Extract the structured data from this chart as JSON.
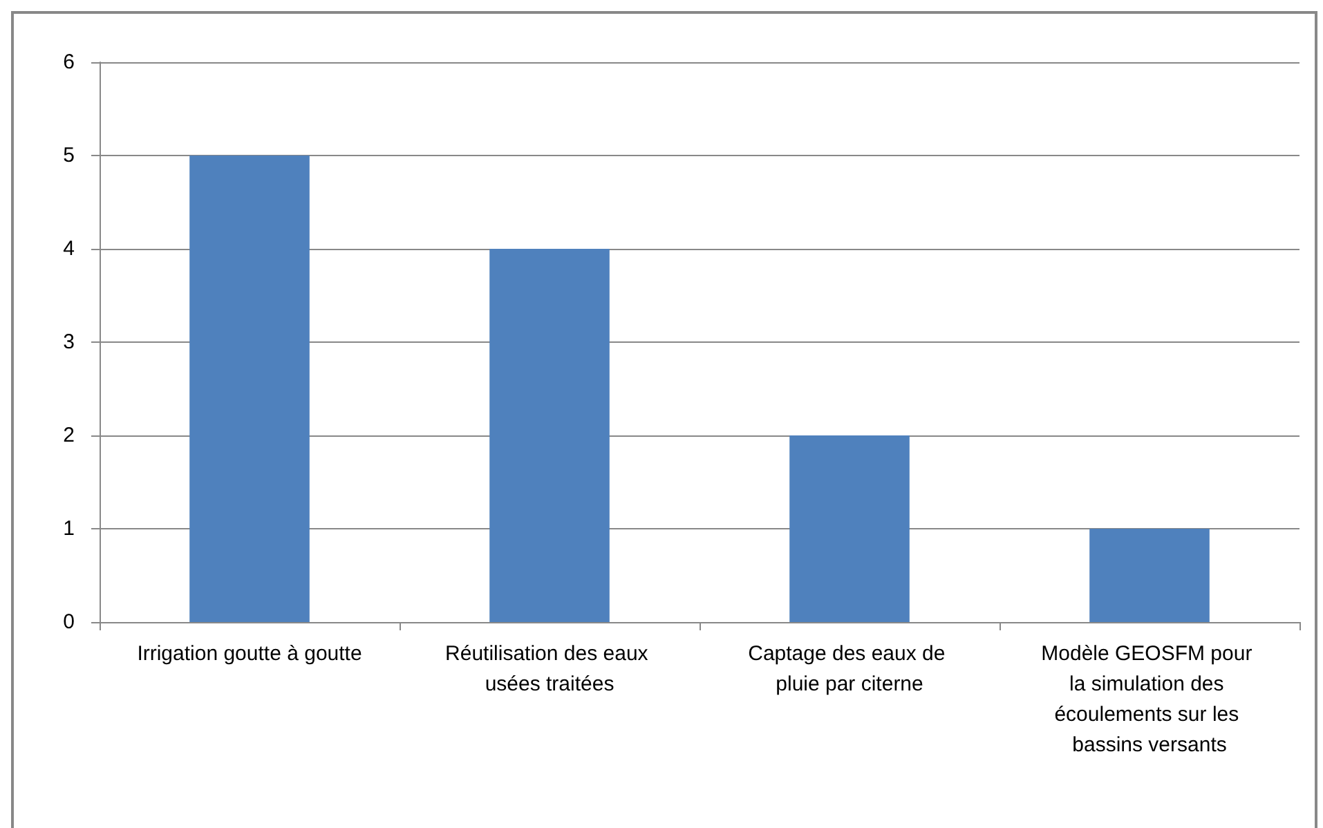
{
  "chart_data": {
    "type": "bar",
    "categories": [
      "Irrigation goutte à goutte",
      "Réutilisation des eaux usées traitées",
      "Captage des eaux de pluie par citerne",
      "Modèle GEOSFM pour la simulation des écoulements sur les bassins versants"
    ],
    "values": [
      5,
      4,
      2,
      1
    ],
    "color": "#4f81bd",
    "ylim": [
      0,
      6
    ],
    "yticks": [
      0,
      1,
      2,
      3,
      4,
      5,
      6
    ],
    "grid": "y"
  }
}
